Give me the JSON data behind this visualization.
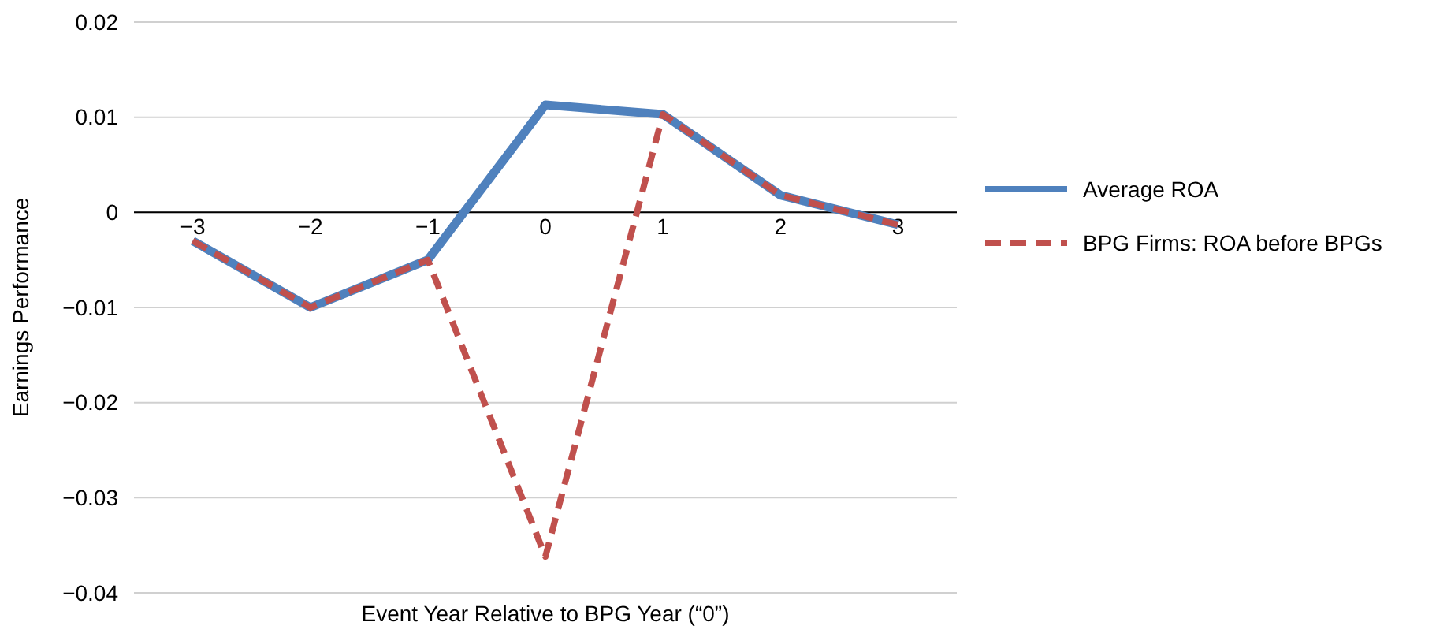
{
  "chart_data": {
    "type": "line",
    "xlabel": "Event Year Relative to BPG Year (“0”)",
    "ylabel": "Earnings Performance",
    "categories": [
      "−3",
      "−2",
      "−1",
      "0",
      "1",
      "2",
      "3"
    ],
    "series": [
      {
        "name": "Average ROA",
        "color": "#4f81bd",
        "line_style": "solid",
        "values": [
          -0.003,
          -0.01,
          -0.005,
          0.0113,
          0.0103,
          0.0018,
          -0.0013
        ]
      },
      {
        "name": "BPG Firms: ROA before BPGs",
        "color": "#c0504d",
        "line_style": "dashed",
        "values": [
          -0.003,
          -0.01,
          -0.005,
          -0.0362,
          0.0103,
          0.0018,
          -0.0013
        ]
      }
    ],
    "ylim": [
      -0.04,
      0.02
    ],
    "yticks": [
      {
        "value": -0.04,
        "label": "−0.04"
      },
      {
        "value": -0.03,
        "label": "−0.03"
      },
      {
        "value": -0.02,
        "label": "−0.02"
      },
      {
        "value": -0.01,
        "label": "−0.01"
      },
      0,
      0.01,
      0.02
    ],
    "grid": "y",
    "legend": "right",
    "marker": "none"
  }
}
